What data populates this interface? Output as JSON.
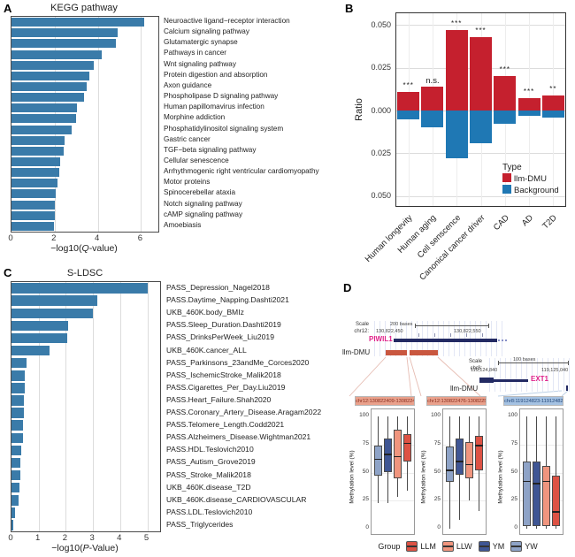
{
  "panel_labels": {
    "a": "A",
    "b": "B",
    "c": "C",
    "d": "D"
  },
  "chart_data": [
    {
      "id": "kegg",
      "type": "bar",
      "orientation": "horizontal",
      "title": "KEGG pathway",
      "xlabel": "−log10(Q-value)",
      "xlabel_parts": {
        "prefix": "−log10(",
        "italic": "Q",
        "suffix": "-value)"
      },
      "xticks": [
        0,
        2,
        4,
        6
      ],
      "xlim": [
        0,
        6.8
      ],
      "bar_color": "#3a7ba9",
      "categories": [
        "Neuroactive ligand−receptor interaction",
        "Calcium signaling pathway",
        "Glutamatergic synapse",
        "Pathways in cancer",
        "Wnt signaling pathway",
        "Protein digestion and absorption",
        "Axon guidance",
        "Phospholipase D signaling pathway",
        "Human papillomavirus infection",
        "Morphine addiction",
        "Phosphatidylinositol signaling system",
        "Gastric cancer",
        "TGF−beta signaling pathway",
        "Cellular senescence",
        "Arrhythmogenic right ventricular cardiomyopathy",
        "Motor proteins",
        "Spinocerebellar ataxia",
        "Notch signaling pathway",
        "cAMP signaling pathway",
        "Amoebiasis"
      ],
      "values": [
        6.15,
        4.9,
        4.85,
        4.2,
        3.8,
        3.6,
        3.5,
        3.35,
        3.05,
        3.0,
        2.8,
        2.45,
        2.4,
        2.25,
        2.2,
        2.15,
        2.05,
        2.0,
        2.0,
        1.95
      ]
    },
    {
      "id": "ratio",
      "type": "bar-mirrored",
      "ylabel": "Ratio",
      "yticks": [
        0.05,
        0.025,
        0.0,
        -0.025,
        -0.05
      ],
      "ytick_labels": [
        "0.050",
        "0.025",
        "0.000",
        "0.025",
        "0.050"
      ],
      "ylim": [
        0.057,
        -0.056
      ],
      "categories": [
        "Human longevity",
        "Human aging",
        "Cell senscence",
        "Canonical cancer driver",
        "CAD",
        "AD",
        "T2D"
      ],
      "series": [
        {
          "name": "llm-DMU",
          "color": "#c5202e",
          "direction": "up",
          "values": [
            0.011,
            0.014,
            0.047,
            0.043,
            0.02,
            0.007,
            0.009
          ]
        },
        {
          "name": "Background",
          "color": "#1f78b4",
          "direction": "down",
          "values": [
            0.005,
            0.01,
            0.028,
            0.019,
            0.008,
            0.003,
            0.004
          ]
        }
      ],
      "significance": [
        "***",
        "n.s.",
        "***",
        "***",
        "***",
        "***",
        "**"
      ],
      "legend_title": "Type"
    },
    {
      "id": "sldsc",
      "type": "bar",
      "orientation": "horizontal",
      "title": "S-LDSC",
      "xlabel": "−log10(P-Value)",
      "xlabel_parts": {
        "prefix": "−log10(",
        "italic": "P",
        "suffix": "-Value)"
      },
      "xticks": [
        0,
        1,
        2,
        3,
        4,
        5
      ],
      "xlim": [
        0,
        5.5
      ],
      "bar_color": "#3a7ba9",
      "categories": [
        "PASS_Depression_Nagel2018",
        "PASS.Daytime_Napping.Dashti2021",
        "UKB_460K.body_BMIz",
        "PASS.Sleep_Duration.Dashti2019",
        "PASS_DrinksPerWeek_Liu2019",
        "UKB_460K.cancer_ALL",
        "PASS_Parkinsons_23andMe_Corces2020",
        "PASS_IschemicStroke_Malik2018",
        "PASS.Cigarettes_Per_Day.Liu2019",
        "PASS.Heart_Failure.Shah2020",
        "PASS.Coronary_Artery_Disease.Aragam2022",
        "PASS.Telomere_Length.Codd2021",
        "PASS.Alzheimers_Disease.Wightman2021",
        "PASS.HDL.Teslovich2010",
        "PASS_Autism_Grove2019",
        "PASS_Stroke_Malik2018",
        "UKB_460K.disease_T2D",
        "UKB_460K.disease_CARDIOVASCULAR",
        "PASS.LDL.Teslovich2010",
        "PASS_Triglycerides"
      ],
      "values": [
        5.0,
        3.15,
        3.0,
        2.1,
        2.05,
        1.4,
        0.55,
        0.5,
        0.49,
        0.46,
        0.45,
        0.43,
        0.41,
        0.37,
        0.34,
        0.31,
        0.28,
        0.25,
        0.14,
        0.07
      ]
    },
    {
      "id": "methylation",
      "type": "boxplot",
      "ylabel": "Methylation level (%)",
      "yticks": [
        0,
        25,
        50,
        75,
        100
      ],
      "group_order": [
        "YW",
        "YM",
        "LLW",
        "LLM"
      ],
      "group_colors": {
        "LLM": "#dd5244",
        "LLW": "#f0957e",
        "YM": "#3f5694",
        "YW": "#8ea3c7"
      },
      "legend": {
        "title": "Group",
        "items": [
          "LLM",
          "LLW",
          "YM",
          "YW"
        ]
      },
      "facets": [
        {
          "title": "chr12:130822409-130822468",
          "strip_color": "#e9a18c",
          "strip_text_color": "#8b3020",
          "boxes": [
            {
              "group": "YW",
              "lo": 23,
              "q1": 47,
              "med": 62,
              "q3": 74,
              "hi": 100
            },
            {
              "group": "YM",
              "lo": 23,
              "q1": 50,
              "med": 66,
              "q3": 80,
              "hi": 100
            },
            {
              "group": "LLW",
              "lo": 28,
              "q1": 45,
              "med": 64,
              "q3": 88,
              "hi": 100
            },
            {
              "group": "LLM",
              "lo": 34,
              "q1": 60,
              "med": 76,
              "q3": 84,
              "hi": 100
            }
          ]
        },
        {
          "title": "chr12:130822476-130822503",
          "strip_color": "#e9a18c",
          "strip_text_color": "#8b3020",
          "boxes": [
            {
              "group": "YW",
              "lo": 0,
              "q1": 42,
              "med": 52,
              "q3": 73,
              "hi": 100
            },
            {
              "group": "YM",
              "lo": 8,
              "q1": 48,
              "med": 60,
              "q3": 80,
              "hi": 100
            },
            {
              "group": "LLW",
              "lo": 25,
              "q1": 45,
              "med": 57,
              "q3": 77,
              "hi": 100
            },
            {
              "group": "LLM",
              "lo": 16,
              "q1": 52,
              "med": 74,
              "q3": 83,
              "hi": 100
            }
          ]
        },
        {
          "title": "chr8:119124823-119124824",
          "strip_color": "#a5c2e2",
          "strip_text_color": "#274a7c",
          "boxes": [
            {
              "group": "YW",
              "lo": 0,
              "q1": 2,
              "med": 42,
              "q3": 60,
              "hi": 100
            },
            {
              "group": "YM",
              "lo": 0,
              "q1": 2,
              "med": 40,
              "q3": 60,
              "hi": 100
            },
            {
              "group": "LLW",
              "lo": 0,
              "q1": 2,
              "med": 42,
              "q3": 56,
              "hi": 100
            },
            {
              "group": "LLM",
              "lo": 0,
              "q1": 2,
              "med": 15,
              "q3": 47,
              "hi": 100
            }
          ]
        }
      ]
    }
  ],
  "panelD": {
    "tracks": [
      {
        "scale_label": "Scale",
        "chrom_label": "chr12:",
        "ruler_label": "200 bases",
        "left_coord": "130,822,450",
        "right_coord": "130,822,550",
        "gene": "PIWIL1",
        "gene_color": "#e0218a",
        "dmu_label": "llm-DMU"
      },
      {
        "scale_label": "Scale",
        "chrom_label": "chr8:",
        "ruler_label": "100 bases",
        "left_coord": "119,124,840",
        "right_coord": "119,125,040",
        "gene": "EXT1",
        "gene_color": "#e0218a",
        "dmu_label": "llm-DMU"
      }
    ]
  }
}
